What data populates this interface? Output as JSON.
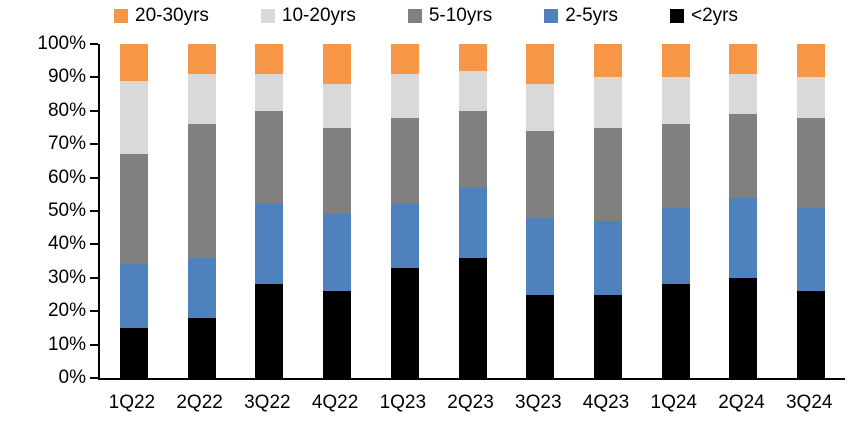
{
  "chart_data": {
    "type": "bar",
    "stacked": true,
    "percent_stacked": true,
    "title": "",
    "xlabel": "",
    "ylabel": "",
    "grid": false,
    "legend_position": "top",
    "categories": [
      "1Q22",
      "2Q22",
      "3Q22",
      "4Q22",
      "1Q23",
      "2Q23",
      "3Q23",
      "4Q23",
      "1Q24",
      "2Q24",
      "3Q24"
    ],
    "series": [
      {
        "name": "<2yrs",
        "color": "#000000",
        "values": [
          15,
          18,
          28,
          26,
          33,
          36,
          25,
          25,
          28,
          30,
          26
        ]
      },
      {
        "name": "2-5yrs",
        "color": "#4F81BD",
        "values": [
          19,
          18,
          24,
          23,
          19,
          21,
          23,
          22,
          23,
          24,
          25
        ]
      },
      {
        "name": "5-10yrs",
        "color": "#808080",
        "values": [
          33,
          40,
          28,
          26,
          26,
          23,
          26,
          28,
          25,
          25,
          27
        ]
      },
      {
        "name": "10-20yrs",
        "color": "#D9D9D9",
        "values": [
          22,
          15,
          11,
          13,
          13,
          12,
          14,
          15,
          14,
          12,
          12
        ]
      },
      {
        "name": "20-30yrs",
        "color": "#F79646",
        "values": [
          11,
          9,
          9,
          12,
          9,
          8,
          12,
          10,
          10,
          9,
          10
        ]
      }
    ],
    "legend_order": [
      "20-30yrs",
      "10-20yrs",
      "5-10yrs",
      "2-5yrs",
      "<2yrs"
    ],
    "y_axis": {
      "min": 0,
      "max": 100,
      "step": 10,
      "labels": [
        "0%",
        "10%",
        "20%",
        "30%",
        "40%",
        "50%",
        "60%",
        "70%",
        "80%",
        "90%",
        "100%"
      ]
    },
    "axis_color": "#000000"
  }
}
